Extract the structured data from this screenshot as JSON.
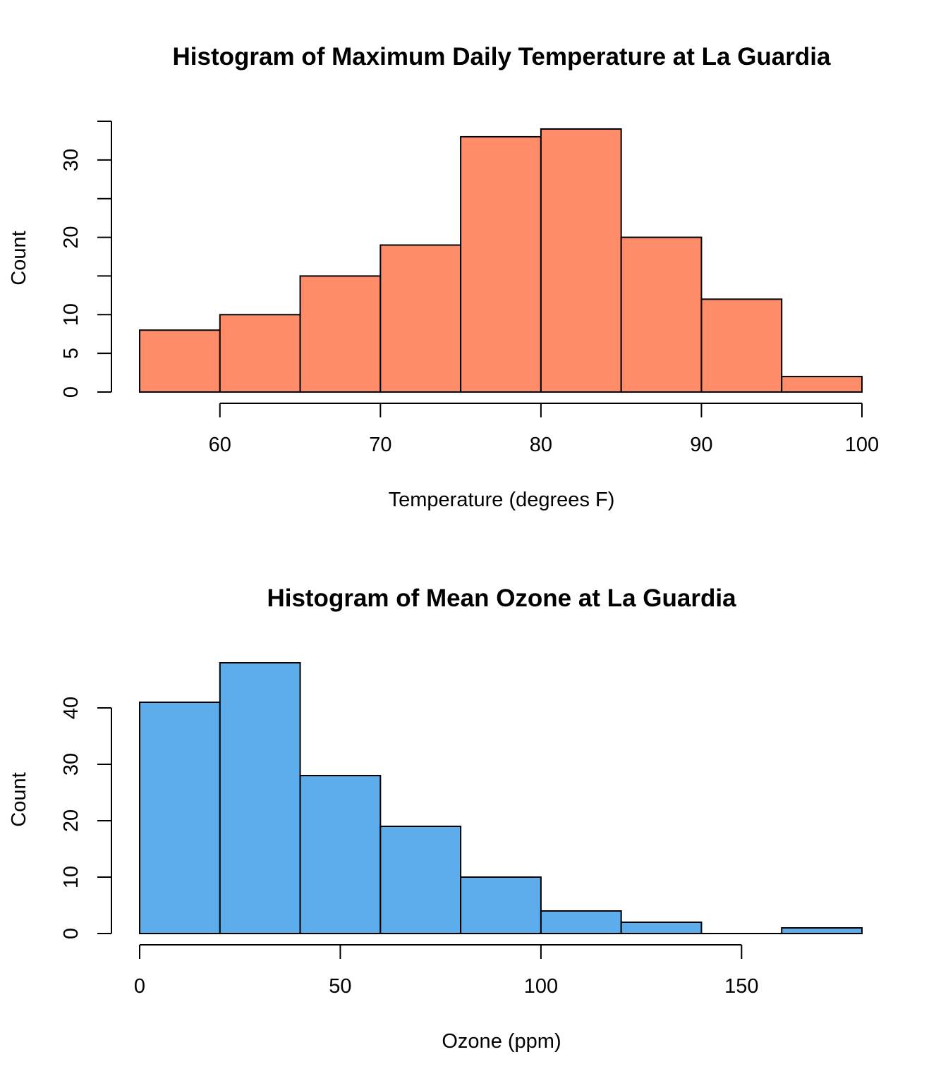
{
  "chart_data": [
    {
      "type": "bar",
      "histogram": true,
      "title": "Histogram of Maximum Daily Temperature at La Guardia",
      "xlabel": "Temperature (degrees F)",
      "ylabel": "Count",
      "bin_edges": [
        55,
        60,
        65,
        70,
        75,
        80,
        85,
        90,
        95,
        100
      ],
      "values": [
        8,
        10,
        15,
        19,
        33,
        34,
        20,
        12,
        2
      ],
      "xlim": [
        55,
        100
      ],
      "ylim": [
        0,
        35
      ],
      "xticks": [
        60,
        70,
        80,
        90,
        100
      ],
      "yticks": [
        0,
        5,
        10,
        15,
        20,
        25,
        30,
        35
      ],
      "ytick_labels": [
        "0",
        "5",
        "10",
        "",
        "20",
        "",
        "30",
        ""
      ],
      "bar_color": "#FF8C69",
      "grid": false,
      "legend": "none"
    },
    {
      "type": "bar",
      "histogram": true,
      "title": "Histogram of Mean Ozone at La Guardia",
      "xlabel": "Ozone (ppm)",
      "ylabel": "Count",
      "bin_edges": [
        0,
        20,
        40,
        60,
        80,
        100,
        120,
        140,
        160,
        180
      ],
      "values": [
        41,
        48,
        28,
        19,
        10,
        4,
        2,
        0,
        1
      ],
      "xlim": [
        0,
        180
      ],
      "ylim": [
        0,
        48
      ],
      "xticks": [
        0,
        50,
        100,
        150
      ],
      "yticks": [
        0,
        10,
        20,
        30,
        40
      ],
      "ytick_labels": [
        "0",
        "10",
        "20",
        "30",
        "40"
      ],
      "bar_color": "#5DADEC",
      "grid": false,
      "legend": "none"
    }
  ]
}
